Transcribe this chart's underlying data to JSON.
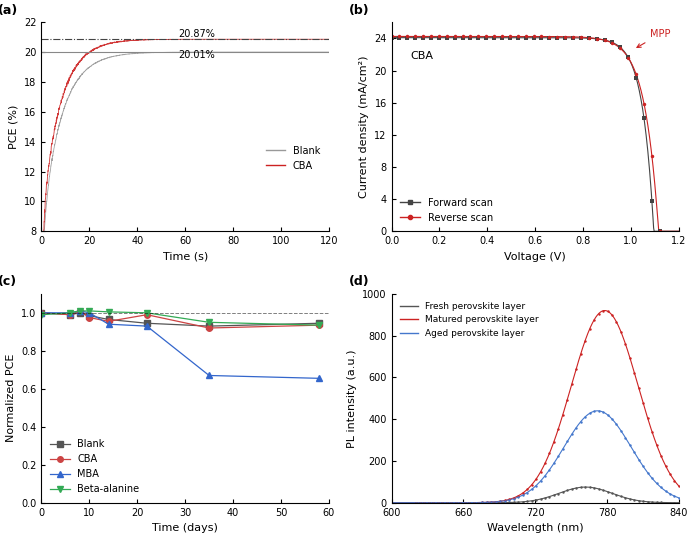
{
  "panel_a": {
    "xlabel": "Time (s)",
    "ylabel": "PCE (%)",
    "xlim": [
      0,
      120
    ],
    "ylim": [
      8,
      22
    ],
    "yticks": [
      8,
      10,
      12,
      14,
      16,
      18,
      20,
      22
    ],
    "xticks": [
      0,
      20,
      40,
      60,
      80,
      100,
      120
    ],
    "blank_asymptote": 20.01,
    "cba_asymptote": 20.87,
    "blank_color": "#999999",
    "cba_color": "#cc2222"
  },
  "panel_b": {
    "xlabel": "Voltage (V)",
    "ylabel": "Current density (mA/cm²)",
    "xlim": [
      0.0,
      1.2
    ],
    "ylim": [
      0,
      26
    ],
    "yticks": [
      0,
      4,
      8,
      12,
      16,
      20,
      24
    ],
    "xticks": [
      0.0,
      0.2,
      0.4,
      0.6,
      0.8,
      1.0,
      1.2
    ],
    "forward_color": "#444444",
    "reverse_color": "#cc2222",
    "jsc_fwd": 24.1,
    "voc_fwd": 1.095,
    "jsc_rev": 24.25,
    "voc_rev": 1.115,
    "mpp_v": 0.97,
    "label_text": "CBA"
  },
  "panel_c": {
    "xlabel": "Time (days)",
    "ylabel": "Normalized PCE",
    "xlim": [
      0,
      60
    ],
    "ylim": [
      0.0,
      1.1
    ],
    "yticks": [
      0.0,
      0.2,
      0.4,
      0.6,
      0.8,
      1.0
    ],
    "xticks": [
      0,
      10,
      20,
      30,
      40,
      50,
      60
    ],
    "blank_color": "#555555",
    "cba_color": "#cc4444",
    "mba_color": "#3366cc",
    "beta_color": "#33aa55",
    "blank_days": [
      0,
      6,
      8,
      10,
      14,
      22,
      35,
      58
    ],
    "blank_vals": [
      1.0,
      0.99,
      1.0,
      0.985,
      0.965,
      0.945,
      0.93,
      0.945
    ],
    "cba_days": [
      0,
      6,
      8,
      10,
      14,
      22,
      35,
      58
    ],
    "cba_vals": [
      1.0,
      0.99,
      1.01,
      0.975,
      0.955,
      0.99,
      0.92,
      0.935
    ],
    "mba_days": [
      0,
      6,
      8,
      10,
      14,
      22,
      35,
      58
    ],
    "mba_vals": [
      1.0,
      1.0,
      1.01,
      1.0,
      0.94,
      0.93,
      0.67,
      0.655
    ],
    "beta_days": [
      0,
      6,
      8,
      10,
      14,
      22,
      35,
      58
    ],
    "beta_vals": [
      0.99,
      1.0,
      1.01,
      1.01,
      1.005,
      1.0,
      0.95,
      0.935
    ]
  },
  "panel_d": {
    "xlabel": "Wavelength (nm)",
    "ylabel": "PL intensity (a.u.)",
    "xlim": [
      600,
      840
    ],
    "ylim": [
      0,
      1000
    ],
    "yticks": [
      0,
      200,
      400,
      600,
      800,
      1000
    ],
    "xticks": [
      600,
      660,
      720,
      780,
      840
    ],
    "fresh_color": "#555555",
    "matured_color": "#cc2222",
    "aged_color": "#4477cc",
    "fresh_peak": 762,
    "fresh_amp": 75,
    "fresh_sigma": 22,
    "matured_peak": 778,
    "matured_amp": 920,
    "matured_sigma": 28,
    "aged_peak": 772,
    "aged_amp": 440,
    "aged_sigma": 28
  }
}
